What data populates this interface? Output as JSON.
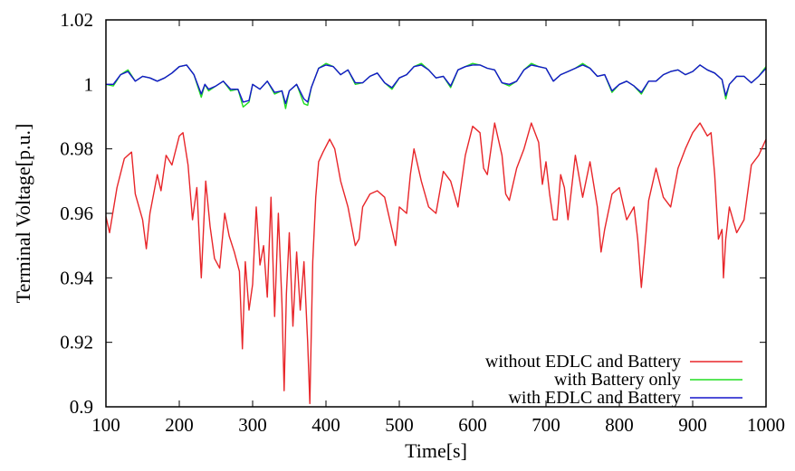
{
  "chart_data": {
    "type": "line",
    "title": "",
    "xlabel": "Time[s]",
    "ylabel": "Terminal Voltage[p.u.]",
    "xlim": [
      100,
      1000
    ],
    "ylim": [
      0.9,
      1.02
    ],
    "x_ticks": [
      100,
      200,
      300,
      400,
      500,
      600,
      700,
      800,
      900,
      1000
    ],
    "x_tick_labels": [
      "100",
      "200",
      "300",
      "400",
      "500",
      "600",
      "700",
      "800",
      "900",
      "1000"
    ],
    "y_ticks": [
      0.9,
      0.92,
      0.94,
      0.96,
      0.98,
      1.0,
      1.02
    ],
    "y_tick_labels": [
      "0.9",
      "0.92",
      "0.94",
      "0.96",
      "0.98",
      "1",
      "1.02"
    ],
    "grid": false,
    "legend_position": "bottom-right",
    "series": [
      {
        "name": "without EDLC and Battery",
        "color": "#e8262a",
        "x": [
          100,
          105,
          115,
          125,
          135,
          140,
          150,
          155,
          160,
          170,
          175,
          182,
          190,
          200,
          205,
          212,
          218,
          224,
          230,
          236,
          242,
          248,
          255,
          262,
          268,
          275,
          282,
          286,
          290,
          295,
          300,
          305,
          310,
          315,
          320,
          325,
          330,
          335,
          340,
          343,
          346,
          350,
          355,
          360,
          365,
          370,
          375,
          378,
          382,
          386,
          390,
          396,
          405,
          412,
          420,
          430,
          440,
          445,
          450,
          460,
          470,
          480,
          490,
          495,
          500,
          510,
          515,
          520,
          530,
          540,
          550,
          560,
          570,
          580,
          590,
          600,
          610,
          615,
          620,
          630,
          640,
          645,
          650,
          660,
          670,
          680,
          690,
          695,
          700,
          705,
          710,
          715,
          720,
          725,
          730,
          740,
          750,
          760,
          770,
          775,
          780,
          790,
          800,
          810,
          820,
          825,
          830,
          835,
          840,
          850,
          860,
          870,
          880,
          890,
          900,
          910,
          920,
          925,
          930,
          935,
          940,
          942,
          945,
          950,
          960,
          970,
          980,
          990,
          1000
        ],
        "values": [
          0.959,
          0.954,
          0.968,
          0.977,
          0.979,
          0.966,
          0.958,
          0.949,
          0.96,
          0.972,
          0.967,
          0.978,
          0.975,
          0.984,
          0.985,
          0.975,
          0.958,
          0.968,
          0.94,
          0.97,
          0.956,
          0.946,
          0.943,
          0.96,
          0.953,
          0.948,
          0.942,
          0.918,
          0.945,
          0.93,
          0.938,
          0.962,
          0.944,
          0.95,
          0.934,
          0.965,
          0.928,
          0.96,
          0.932,
          0.905,
          0.935,
          0.954,
          0.925,
          0.948,
          0.93,
          0.945,
          0.92,
          0.901,
          0.945,
          0.965,
          0.976,
          0.979,
          0.983,
          0.98,
          0.97,
          0.962,
          0.95,
          0.952,
          0.962,
          0.966,
          0.967,
          0.965,
          0.955,
          0.95,
          0.962,
          0.96,
          0.972,
          0.98,
          0.97,
          0.962,
          0.96,
          0.973,
          0.97,
          0.962,
          0.978,
          0.987,
          0.985,
          0.974,
          0.972,
          0.988,
          0.978,
          0.966,
          0.964,
          0.974,
          0.98,
          0.988,
          0.982,
          0.969,
          0.976,
          0.966,
          0.958,
          0.958,
          0.972,
          0.968,
          0.958,
          0.978,
          0.965,
          0.976,
          0.962,
          0.948,
          0.955,
          0.966,
          0.968,
          0.958,
          0.962,
          0.952,
          0.937,
          0.95,
          0.964,
          0.974,
          0.965,
          0.962,
          0.974,
          0.98,
          0.985,
          0.988,
          0.984,
          0.985,
          0.972,
          0.952,
          0.955,
          0.94,
          0.952,
          0.962,
          0.954,
          0.958,
          0.975,
          0.978,
          0.983
        ]
      },
      {
        "name": "with Battery only",
        "color": "#22dd22",
        "x": [
          100,
          110,
          120,
          130,
          140,
          150,
          160,
          170,
          180,
          190,
          200,
          210,
          220,
          230,
          235,
          240,
          250,
          260,
          270,
          280,
          287,
          295,
          300,
          310,
          320,
          330,
          340,
          345,
          350,
          360,
          370,
          375,
          380,
          390,
          400,
          410,
          420,
          430,
          440,
          450,
          460,
          470,
          480,
          490,
          500,
          510,
          520,
          530,
          540,
          550,
          560,
          570,
          580,
          590,
          600,
          610,
          620,
          630,
          640,
          650,
          660,
          670,
          680,
          690,
          700,
          710,
          720,
          730,
          740,
          750,
          760,
          770,
          780,
          790,
          800,
          810,
          820,
          830,
          840,
          850,
          860,
          870,
          880,
          890,
          900,
          910,
          920,
          930,
          940,
          945,
          950,
          960,
          970,
          980,
          990,
          1000
        ],
        "values": [
          1.0,
          0.9995,
          1.003,
          1.0045,
          1.001,
          1.0025,
          1.002,
          1.001,
          1.002,
          1.0035,
          1.0055,
          1.006,
          1.003,
          0.996,
          1.0,
          0.998,
          0.9995,
          1.001,
          0.998,
          0.9985,
          0.993,
          0.9945,
          1.0,
          0.9985,
          1.001,
          0.997,
          0.998,
          0.9925,
          0.998,
          1.0,
          0.994,
          0.9935,
          0.999,
          1.005,
          1.0065,
          1.0055,
          1.003,
          1.0045,
          1.0,
          1.0005,
          1.0025,
          1.0035,
          1.0005,
          0.9985,
          1.002,
          1.003,
          1.0055,
          1.0065,
          1.0045,
          1.002,
          1.0025,
          0.999,
          1.0045,
          1.0055,
          1.0065,
          1.006,
          1.005,
          1.0045,
          1.0005,
          0.9995,
          1.001,
          1.0045,
          1.0065,
          1.0055,
          1.005,
          1.001,
          1.003,
          1.004,
          1.005,
          1.0065,
          1.005,
          1.0025,
          1.003,
          0.9975,
          1.0,
          1.001,
          0.9995,
          0.997,
          1.001,
          1.001,
          1.003,
          1.004,
          1.0045,
          1.003,
          1.004,
          1.006,
          1.0045,
          1.0035,
          1.0015,
          0.9955,
          1.0,
          1.0025,
          1.0025,
          1.0005,
          1.0025,
          1.0055
        ]
      },
      {
        "name": "with EDLC and Battery",
        "color": "#1515cc",
        "x": [
          100,
          110,
          120,
          130,
          140,
          150,
          160,
          170,
          180,
          190,
          200,
          210,
          220,
          230,
          235,
          240,
          250,
          260,
          270,
          280,
          287,
          295,
          300,
          310,
          320,
          330,
          340,
          345,
          350,
          360,
          370,
          375,
          380,
          390,
          400,
          410,
          420,
          430,
          440,
          450,
          460,
          470,
          480,
          490,
          500,
          510,
          520,
          530,
          540,
          550,
          560,
          570,
          580,
          590,
          600,
          610,
          620,
          630,
          640,
          650,
          660,
          670,
          680,
          690,
          700,
          710,
          720,
          730,
          740,
          750,
          760,
          770,
          780,
          790,
          800,
          810,
          820,
          830,
          840,
          850,
          860,
          870,
          880,
          890,
          900,
          910,
          920,
          930,
          940,
          945,
          950,
          960,
          970,
          980,
          990,
          1000
        ],
        "values": [
          1.0,
          1.0,
          1.003,
          1.004,
          1.001,
          1.0025,
          1.002,
          1.001,
          1.002,
          1.0035,
          1.0055,
          1.006,
          1.003,
          0.997,
          1.0,
          0.9985,
          0.9995,
          1.001,
          0.9985,
          0.9985,
          0.9945,
          0.995,
          1.0,
          0.9985,
          1.001,
          0.9975,
          0.998,
          0.994,
          0.998,
          1.0,
          0.9955,
          0.9945,
          0.999,
          1.005,
          1.006,
          1.0055,
          1.003,
          1.0045,
          1.0005,
          1.0005,
          1.0025,
          1.0035,
          1.0005,
          0.999,
          1.002,
          1.003,
          1.0055,
          1.006,
          1.0045,
          1.002,
          1.0025,
          0.9995,
          1.0045,
          1.0055,
          1.006,
          1.006,
          1.005,
          1.0045,
          1.0005,
          1.0,
          1.001,
          1.0045,
          1.006,
          1.0055,
          1.005,
          1.001,
          1.003,
          1.004,
          1.005,
          1.006,
          1.005,
          1.0025,
          1.003,
          0.998,
          1.0,
          1.001,
          0.9995,
          0.9975,
          1.001,
          1.001,
          1.003,
          1.004,
          1.0045,
          1.003,
          1.004,
          1.006,
          1.0045,
          1.0035,
          1.0015,
          0.9965,
          1.0,
          1.0025,
          1.0025,
          1.0005,
          1.0025,
          1.005
        ]
      }
    ]
  }
}
